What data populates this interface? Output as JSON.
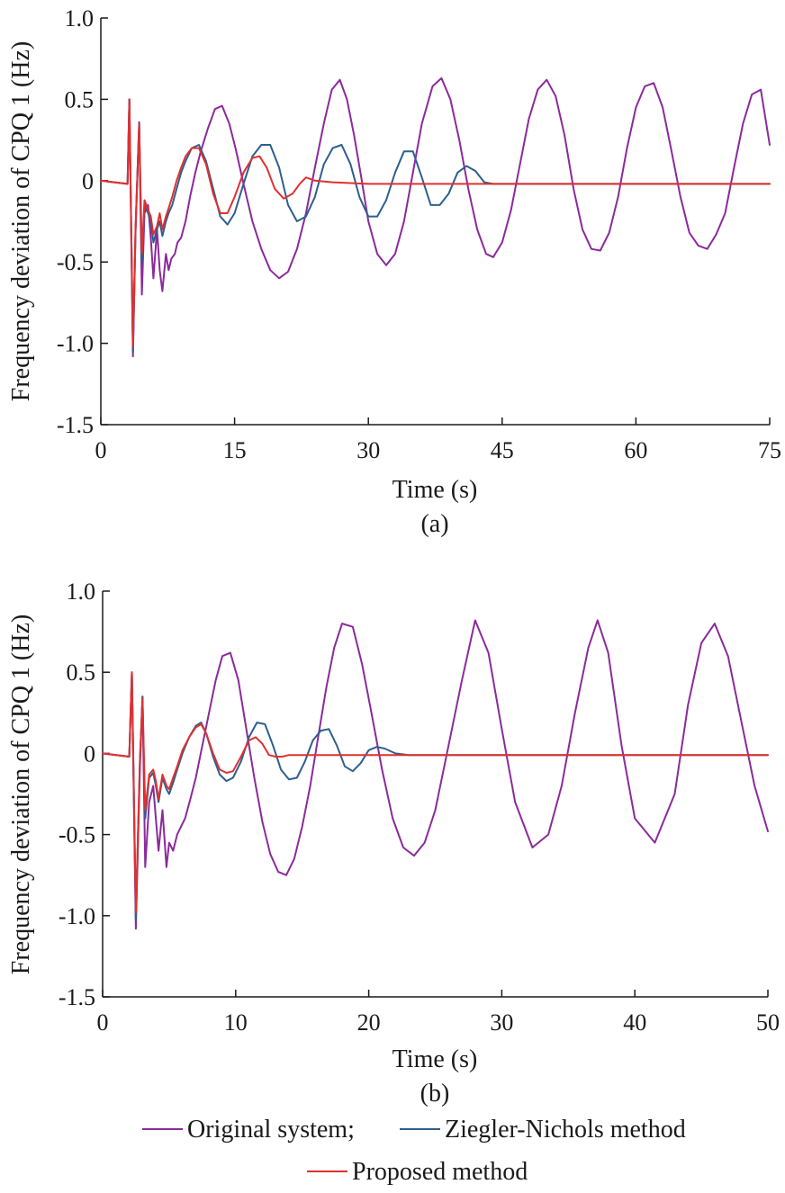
{
  "colors": {
    "original": "#8B2A9B",
    "ziegler": "#2E5F8E",
    "proposed": "#E03030",
    "axis": "#1a1a1a"
  },
  "legend": {
    "original": "Original system;",
    "ziegler": "Ziegler-Nichols method",
    "proposed": "Proposed method"
  },
  "chart_data": [
    {
      "type": "line",
      "caption": "(a)",
      "xlabel": "Time (s)",
      "ylabel": "Frequency deviation of CPQ 1 (Hz)",
      "xlim": [
        0,
        75
      ],
      "ylim": [
        -1.5,
        1.0
      ],
      "xticks": [
        0,
        15,
        30,
        45,
        60,
        75
      ],
      "xtick_labels": [
        "0",
        "15",
        "30",
        "45",
        "60",
        "75"
      ],
      "yticks": [
        1.0,
        0.5,
        0,
        -0.5,
        -1.0,
        -1.5
      ],
      "ytick_labels": [
        "1.0",
        "0.5",
        "0",
        "-0.5",
        "-1.0",
        "-1.5"
      ],
      "series": [
        {
          "name": "Original system",
          "color_key": "original",
          "x": [
            0,
            3.0,
            3.2,
            3.6,
            3.9,
            4.3,
            4.6,
            4.9,
            5.3,
            5.6,
            5.9,
            6.3,
            6.6,
            6.9,
            7.3,
            7.6,
            7.9,
            8.3,
            8.6,
            9.0,
            9.5,
            10.0,
            10.6,
            11.2,
            12.0,
            12.8,
            13.6,
            14.4,
            15.1,
            16.0,
            17.0,
            18.0,
            19.0,
            20.0,
            21.0,
            22.0,
            23.0,
            24.0,
            25.0,
            25.9,
            26.8,
            27.6,
            28.4,
            29.2,
            30.0,
            31.0,
            32.0,
            33.0,
            34.0,
            35.0,
            36.0,
            37.2,
            38.2,
            39.2,
            40.2,
            41.2,
            42.2,
            43.2,
            44.0,
            45.0,
            46.0,
            47.0,
            48.0,
            49.0,
            50.0,
            51.0,
            52.0,
            53.0,
            54.0,
            55.0,
            56.0,
            57.0,
            58.0,
            59.0,
            60.0,
            61.0,
            62.0,
            63.0,
            64.0,
            65.0,
            66.0,
            67.0,
            68.0,
            69.0,
            70.0,
            71.0,
            72.0,
            73.0,
            74.0,
            75.0
          ],
          "y": [
            0,
            -0.02,
            0.5,
            -1.08,
            -0.3,
            0.36,
            -0.7,
            -0.2,
            -0.15,
            -0.35,
            -0.6,
            -0.3,
            -0.55,
            -0.68,
            -0.45,
            -0.55,
            -0.48,
            -0.45,
            -0.38,
            -0.35,
            -0.25,
            -0.1,
            0.05,
            0.18,
            0.32,
            0.44,
            0.46,
            0.35,
            0.2,
            -0.02,
            -0.25,
            -0.42,
            -0.55,
            -0.6,
            -0.56,
            -0.42,
            -0.2,
            0.08,
            0.35,
            0.56,
            0.62,
            0.5,
            0.28,
            0.02,
            -0.25,
            -0.45,
            -0.52,
            -0.45,
            -0.25,
            0.05,
            0.35,
            0.58,
            0.63,
            0.5,
            0.25,
            -0.05,
            -0.3,
            -0.45,
            -0.47,
            -0.38,
            -0.18,
            0.1,
            0.38,
            0.56,
            0.62,
            0.52,
            0.28,
            -0.05,
            -0.3,
            -0.42,
            -0.43,
            -0.32,
            -0.1,
            0.2,
            0.45,
            0.58,
            0.6,
            0.45,
            0.18,
            -0.1,
            -0.32,
            -0.4,
            -0.42,
            -0.33,
            -0.2,
            0.08,
            0.35,
            0.53,
            0.56,
            0.22
          ]
        },
        {
          "name": "Ziegler-Nichols method",
          "color_key": "ziegler",
          "x": [
            0,
            3.0,
            3.2,
            3.6,
            3.9,
            4.3,
            4.6,
            4.9,
            5.3,
            5.6,
            5.9,
            6.3,
            6.6,
            6.9,
            7.3,
            7.6,
            8.0,
            8.5,
            9.0,
            9.5,
            10.2,
            11.0,
            11.8,
            12.6,
            13.4,
            14.2,
            15.0,
            16.0,
            17.0,
            18.0,
            19.0,
            20.0,
            21.0,
            22.0,
            23.0,
            24.0,
            25.0,
            26.0,
            27.0,
            28.0,
            29.0,
            30.0,
            31.0,
            32.0,
            33.0,
            34.0,
            35.0,
            36.0,
            37.0,
            38.0,
            39.0,
            40.0,
            41.0,
            42.0,
            43.0,
            44.0,
            45.0,
            50.0,
            55.0,
            60.0,
            65.0,
            70.0,
            75.0
          ],
          "y": [
            0,
            -0.02,
            0.5,
            -1.05,
            -0.3,
            0.35,
            -0.5,
            -0.15,
            -0.2,
            -0.25,
            -0.38,
            -0.3,
            -0.25,
            -0.34,
            -0.25,
            -0.2,
            -0.15,
            -0.05,
            0.05,
            0.12,
            0.2,
            0.22,
            0.12,
            -0.05,
            -0.22,
            -0.27,
            -0.2,
            -0.02,
            0.15,
            0.22,
            0.22,
            0.08,
            -0.15,
            -0.25,
            -0.22,
            -0.1,
            0.1,
            0.2,
            0.22,
            0.1,
            -0.1,
            -0.22,
            -0.22,
            -0.12,
            0.05,
            0.18,
            0.18,
            0.02,
            -0.15,
            -0.15,
            -0.08,
            0.05,
            0.09,
            0.06,
            -0.01,
            -0.02,
            -0.02,
            -0.02,
            -0.02,
            -0.02,
            -0.02,
            -0.02,
            -0.02
          ]
        },
        {
          "name": "Proposed method",
          "color_key": "proposed",
          "x": [
            0,
            3.0,
            3.2,
            3.6,
            3.9,
            4.3,
            4.6,
            4.9,
            5.3,
            5.6,
            5.9,
            6.3,
            6.6,
            6.9,
            7.3,
            7.6,
            8.0,
            8.5,
            9.0,
            9.5,
            10.2,
            11.0,
            11.8,
            12.6,
            13.4,
            14.2,
            15.0,
            16.0,
            17.0,
            17.8,
            18.6,
            19.5,
            20.5,
            21.5,
            22.3,
            23.0,
            24.0,
            26.0,
            30.0,
            40.0,
            50.0,
            60.0,
            75.0
          ],
          "y": [
            0,
            -0.02,
            0.5,
            -1.02,
            -0.28,
            0.34,
            -0.45,
            -0.12,
            -0.18,
            -0.22,
            -0.33,
            -0.28,
            -0.2,
            -0.3,
            -0.22,
            -0.17,
            -0.1,
            0.0,
            0.08,
            0.15,
            0.2,
            0.2,
            0.1,
            -0.08,
            -0.2,
            -0.2,
            -0.1,
            0.05,
            0.14,
            0.15,
            0.08,
            -0.05,
            -0.11,
            -0.08,
            -0.02,
            0.02,
            0.0,
            -0.01,
            -0.02,
            -0.02,
            -0.02,
            -0.02,
            -0.02
          ]
        }
      ]
    },
    {
      "type": "line",
      "caption": "(b)",
      "xlabel": "Time (s)",
      "ylabel": "Frequency deviation of CPQ 1 (Hz)",
      "xlim": [
        0,
        50
      ],
      "ylim": [
        -1.5,
        1.0
      ],
      "xticks": [
        0,
        10,
        20,
        30,
        40,
        50
      ],
      "xtick_labels": [
        "0",
        "10",
        "20",
        "30",
        "40",
        "50"
      ],
      "yticks": [
        1.0,
        0.5,
        0,
        -0.5,
        -1.0,
        -1.5
      ],
      "ytick_labels": [
        "1.0",
        "0.5",
        "0",
        "-0.5",
        "-1.0",
        "-1.5"
      ],
      "series": [
        {
          "name": "Original system",
          "color_key": "original",
          "x": [
            0,
            2.0,
            2.2,
            2.5,
            2.8,
            3.0,
            3.2,
            3.5,
            3.8,
            4.0,
            4.2,
            4.5,
            4.8,
            5.0,
            5.3,
            5.6,
            5.9,
            6.2,
            6.6,
            7.0,
            7.5,
            8.0,
            8.5,
            9.0,
            9.6,
            10.2,
            10.8,
            11.4,
            12.0,
            12.6,
            13.2,
            13.8,
            14.4,
            15.0,
            15.6,
            16.2,
            16.8,
            17.4,
            18.0,
            18.8,
            19.5,
            20.2,
            21.0,
            21.8,
            22.6,
            23.4,
            24.2,
            25.0,
            26.0,
            27.0,
            28.0,
            29.0,
            30.0,
            31.0,
            32.3,
            33.5,
            34.5,
            35.5,
            36.5,
            37.2,
            38.0,
            39.0,
            40.0,
            41.5,
            43.0,
            44.0,
            45.0,
            46.0,
            47.0,
            48.0,
            49.0,
            50.0
          ],
          "y": [
            0,
            -0.02,
            0.5,
            -1.08,
            -0.1,
            0.35,
            -0.7,
            -0.3,
            -0.2,
            -0.4,
            -0.6,
            -0.35,
            -0.7,
            -0.55,
            -0.6,
            -0.5,
            -0.45,
            -0.4,
            -0.28,
            -0.15,
            0.05,
            0.25,
            0.45,
            0.6,
            0.62,
            0.45,
            0.15,
            -0.15,
            -0.42,
            -0.62,
            -0.73,
            -0.75,
            -0.65,
            -0.45,
            -0.2,
            0.1,
            0.4,
            0.65,
            0.8,
            0.78,
            0.55,
            0.25,
            -0.1,
            -0.4,
            -0.58,
            -0.63,
            -0.55,
            -0.35,
            0.05,
            0.45,
            0.82,
            0.62,
            0.15,
            -0.3,
            -0.58,
            -0.5,
            -0.2,
            0.25,
            0.65,
            0.82,
            0.62,
            0.05,
            -0.4,
            -0.55,
            -0.25,
            0.3,
            0.68,
            0.8,
            0.6,
            0.2,
            -0.2,
            -0.48
          ]
        },
        {
          "name": "Ziegler-Nichols method",
          "color_key": "ziegler",
          "x": [
            0,
            2.0,
            2.2,
            2.5,
            2.8,
            3.0,
            3.2,
            3.5,
            3.8,
            4.0,
            4.2,
            4.5,
            4.8,
            5.0,
            5.3,
            5.6,
            6.0,
            6.5,
            7.0,
            7.4,
            7.8,
            8.3,
            8.8,
            9.3,
            9.8,
            10.4,
            11.0,
            11.6,
            12.2,
            12.8,
            13.4,
            14.0,
            14.6,
            15.2,
            15.8,
            16.4,
            17.0,
            17.6,
            18.2,
            18.8,
            19.4,
            20.0,
            20.6,
            21.2,
            22.0,
            23.0,
            25.0,
            30.0,
            40.0,
            50.0
          ],
          "y": [
            0,
            -0.02,
            0.5,
            -1.03,
            -0.05,
            0.35,
            -0.4,
            -0.15,
            -0.12,
            -0.2,
            -0.3,
            -0.15,
            -0.22,
            -0.25,
            -0.18,
            -0.1,
            0.0,
            0.1,
            0.17,
            0.19,
            0.12,
            -0.02,
            -0.13,
            -0.17,
            -0.15,
            -0.05,
            0.1,
            0.19,
            0.18,
            0.05,
            -0.1,
            -0.16,
            -0.15,
            -0.05,
            0.08,
            0.14,
            0.15,
            0.05,
            -0.08,
            -0.11,
            -0.06,
            0.02,
            0.04,
            0.03,
            0.0,
            -0.01,
            -0.01,
            -0.01,
            -0.01,
            -0.01
          ]
        },
        {
          "name": "Proposed method",
          "color_key": "proposed",
          "x": [
            0,
            2.0,
            2.2,
            2.5,
            2.8,
            3.0,
            3.2,
            3.5,
            3.8,
            4.0,
            4.2,
            4.5,
            4.8,
            5.0,
            5.3,
            5.6,
            6.0,
            6.5,
            7.0,
            7.4,
            7.8,
            8.3,
            8.8,
            9.3,
            9.8,
            10.4,
            11.0,
            11.5,
            12.0,
            12.5,
            13.0,
            13.5,
            14.0,
            15.0,
            17.0,
            20.0,
            30.0,
            40.0,
            50.0
          ],
          "y": [
            0,
            -0.02,
            0.5,
            -0.98,
            -0.05,
            0.34,
            -0.35,
            -0.13,
            -0.1,
            -0.17,
            -0.28,
            -0.13,
            -0.2,
            -0.22,
            -0.15,
            -0.08,
            0.02,
            0.1,
            0.16,
            0.18,
            0.12,
            0.0,
            -0.1,
            -0.12,
            -0.11,
            -0.02,
            0.08,
            0.1,
            0.06,
            -0.01,
            -0.02,
            -0.02,
            -0.01,
            -0.01,
            -0.01,
            -0.01,
            -0.01,
            -0.01,
            -0.01
          ]
        }
      ]
    }
  ]
}
